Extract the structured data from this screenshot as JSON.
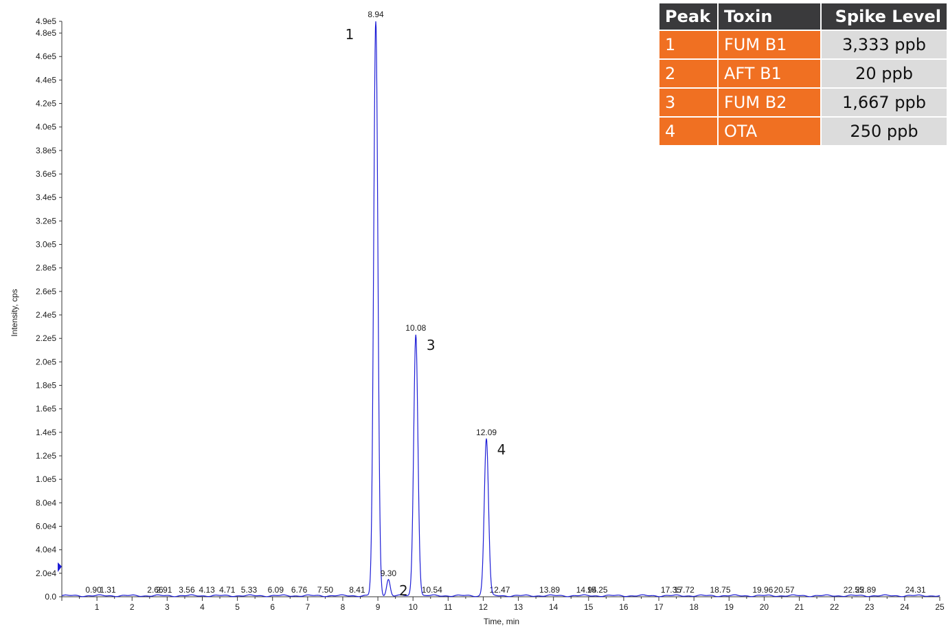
{
  "chart_data": {
    "type": "line",
    "xlabel": "Time, min",
    "ylabel": "Intensity, cps",
    "xlim": [
      0,
      25
    ],
    "ylim": [
      0,
      490000
    ],
    "x_ticks": [
      "1",
      "2",
      "3",
      "4",
      "5",
      "6",
      "7",
      "8",
      "9",
      "10",
      "11",
      "12",
      "13",
      "14",
      "15",
      "16",
      "17",
      "18",
      "19",
      "20",
      "21",
      "22",
      "23",
      "24",
      "25"
    ],
    "y_ticks": [
      {
        "value": 0,
        "label": "0.0"
      },
      {
        "value": 20000,
        "label": "2.0e4"
      },
      {
        "value": 40000,
        "label": "4.0e4"
      },
      {
        "value": 60000,
        "label": "6.0e4"
      },
      {
        "value": 80000,
        "label": "8.0e4"
      },
      {
        "value": 100000,
        "label": "1.0e5"
      },
      {
        "value": 120000,
        "label": "1.2e5"
      },
      {
        "value": 140000,
        "label": "1.4e5"
      },
      {
        "value": 160000,
        "label": "1.6e5"
      },
      {
        "value": 180000,
        "label": "1.8e5"
      },
      {
        "value": 200000,
        "label": "2.0e5"
      },
      {
        "value": 220000,
        "label": "2.2e5"
      },
      {
        "value": 240000,
        "label": "2.4e5"
      },
      {
        "value": 260000,
        "label": "2.6e5"
      },
      {
        "value": 280000,
        "label": "2.8e5"
      },
      {
        "value": 300000,
        "label": "3.0e5"
      },
      {
        "value": 320000,
        "label": "3.2e5"
      },
      {
        "value": 340000,
        "label": "3.4e5"
      },
      {
        "value": 360000,
        "label": "3.6e5"
      },
      {
        "value": 380000,
        "label": "3.8e5"
      },
      {
        "value": 400000,
        "label": "4.0e5"
      },
      {
        "value": 420000,
        "label": "4.2e5"
      },
      {
        "value": 440000,
        "label": "4.4e5"
      },
      {
        "value": 460000,
        "label": "4.6e5"
      },
      {
        "value": 480000,
        "label": "4.8e5"
      },
      {
        "value": 490000,
        "label": "4.9e5"
      }
    ],
    "line_color": "#1c1cd6",
    "peaks": [
      {
        "rt": 8.94,
        "height": 490000,
        "width": 0.06,
        "label": "8.94"
      },
      {
        "rt": 9.3,
        "height": 14000,
        "width": 0.05,
        "label": "9.30"
      },
      {
        "rt": 10.08,
        "height": 223000,
        "width": 0.06,
        "label": "10.08"
      },
      {
        "rt": 12.09,
        "height": 134000,
        "width": 0.06,
        "label": "12.09"
      }
    ],
    "baseline_labels": [
      {
        "rt": 0.9,
        "label": "0.90"
      },
      {
        "rt": 1.31,
        "label": "1.31"
      },
      {
        "rt": 2.66,
        "label": "2.66"
      },
      {
        "rt": 2.91,
        "label": "2.91"
      },
      {
        "rt": 3.56,
        "label": "3.56"
      },
      {
        "rt": 4.13,
        "label": "4.13"
      },
      {
        "rt": 4.71,
        "label": "4.71"
      },
      {
        "rt": 5.33,
        "label": "5.33"
      },
      {
        "rt": 6.09,
        "label": "6.09"
      },
      {
        "rt": 6.76,
        "label": "6.76"
      },
      {
        "rt": 7.5,
        "label": "7.50"
      },
      {
        "rt": 8.41,
        "label": "8.41"
      },
      {
        "rt": 10.54,
        "label": "10.54"
      },
      {
        "rt": 12.47,
        "label": "12.47"
      },
      {
        "rt": 13.89,
        "label": "13.89"
      },
      {
        "rt": 14.94,
        "label": "14.94"
      },
      {
        "rt": 15.25,
        "label": "15.25"
      },
      {
        "rt": 17.35,
        "label": "17.35"
      },
      {
        "rt": 17.72,
        "label": "17.72"
      },
      {
        "rt": 18.75,
        "label": "18.75"
      },
      {
        "rt": 19.96,
        "label": "19.96"
      },
      {
        "rt": 20.57,
        "label": "20.57"
      },
      {
        "rt": 22.55,
        "label": "22.55"
      },
      {
        "rt": 22.89,
        "label": "22.89"
      },
      {
        "rt": 24.31,
        "label": "24.31"
      }
    ],
    "peak_numbers": [
      {
        "label": "1",
        "rt": 8.94
      },
      {
        "label": "2",
        "rt": 9.3
      },
      {
        "label": "3",
        "rt": 10.08
      },
      {
        "label": "4",
        "rt": 12.09
      }
    ]
  },
  "legend_table": {
    "headers": [
      "Peak",
      "Toxin",
      "Spike Level"
    ],
    "header_bg": "#3a3a3c",
    "cell_accent": "#f07022",
    "cell_neutral": "#dcdcdc",
    "rows": [
      {
        "peak": "1",
        "toxin": "FUM B1",
        "spike": "3,333 ppb"
      },
      {
        "peak": "2",
        "toxin": "AFT B1",
        "spike": "20 ppb"
      },
      {
        "peak": "3",
        "toxin": "FUM B2",
        "spike": "1,667 ppb"
      },
      {
        "peak": "4",
        "toxin": "OTA",
        "spike": "250 ppb"
      }
    ]
  }
}
